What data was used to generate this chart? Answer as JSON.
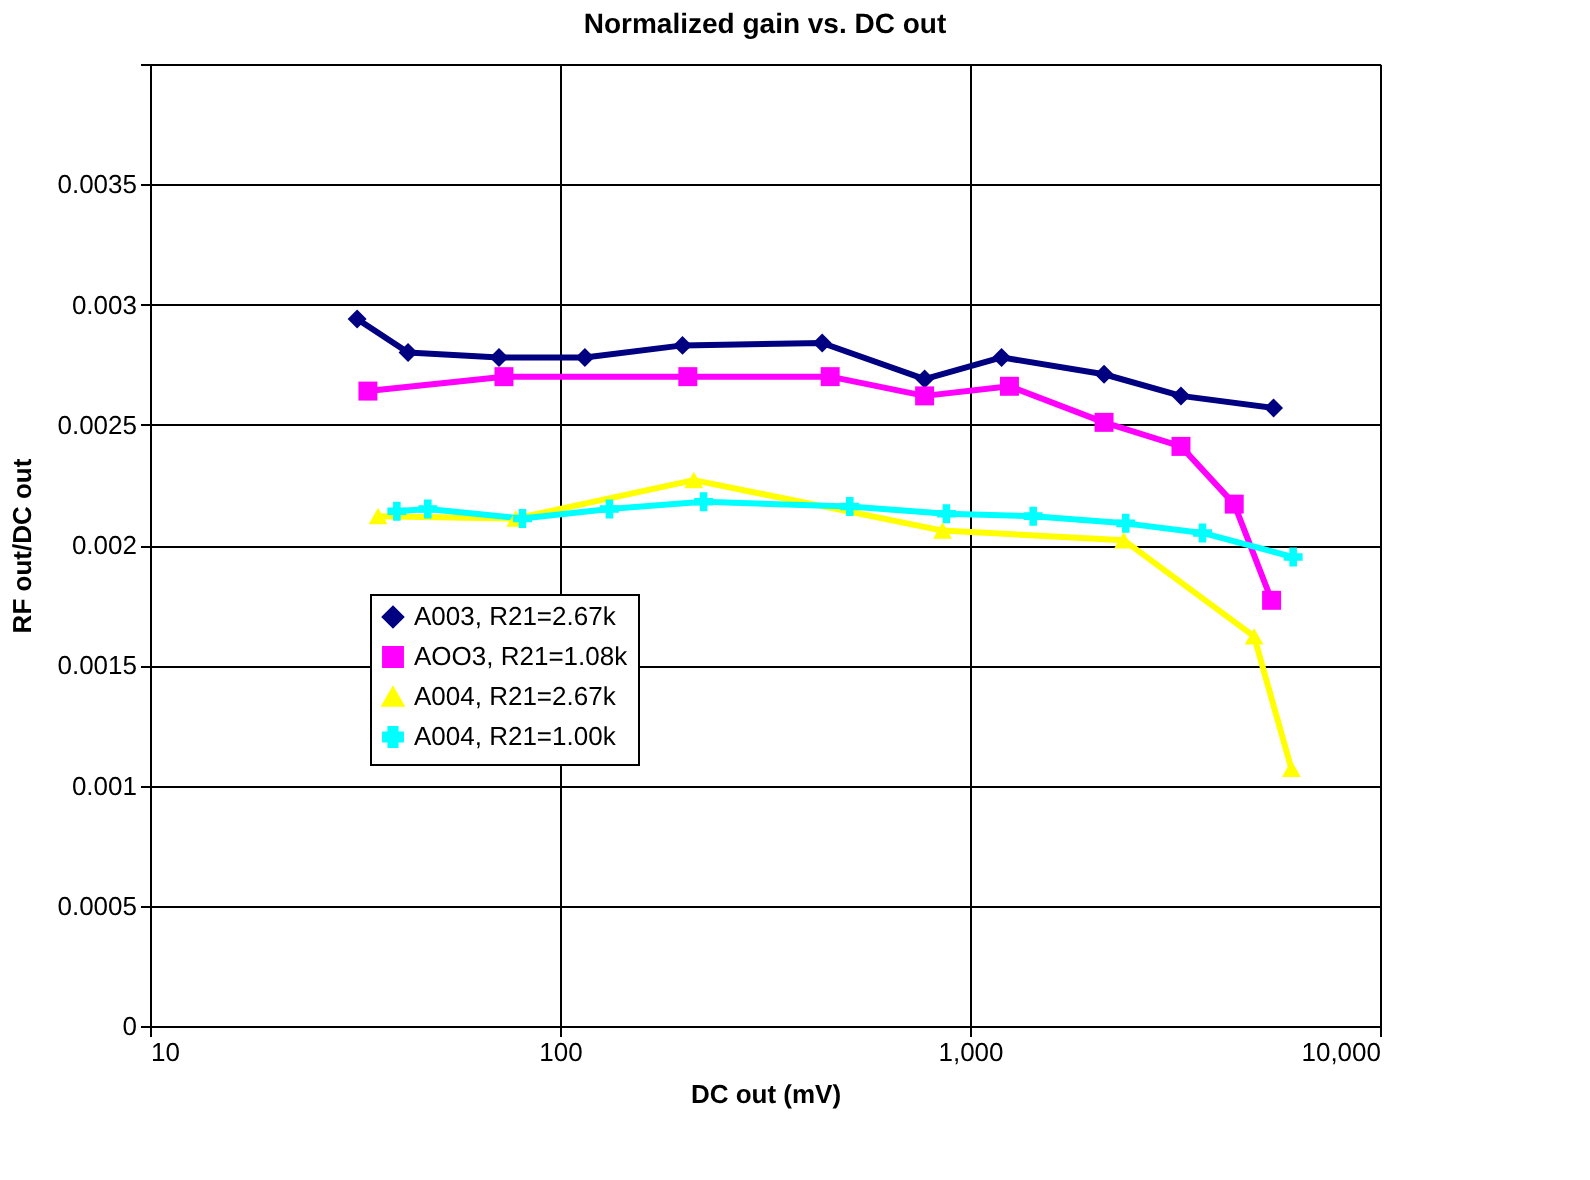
{
  "chart_data": {
    "type": "line",
    "title": "Normalized gain vs. DC out",
    "xlabel": "DC out (mV)",
    "ylabel": "RF out/DC out",
    "log": "x",
    "xlim": [
      10,
      10000
    ],
    "xticks": [
      10,
      100,
      {
        "value": 1000,
        "label": "1,000"
      },
      {
        "value": 10000,
        "label": "10,000"
      }
    ],
    "ylim": [
      0,
      0.004
    ],
    "yticks": [
      0,
      0.0005,
      0.001,
      0.0015,
      0.002,
      0.0025,
      0.003,
      0.0035,
      {
        "value": 0.004,
        "label": null
      }
    ],
    "grid": true,
    "legend": "left",
    "line_style": "solid",
    "series": [
      {
        "name": "A003, R21=2.67k",
        "color": "#000080",
        "marker": "diamond",
        "x": [
          32,
          42.6,
          71,
          115,
          199,
          436,
          775,
          1194,
          2123,
          3270,
          5500
        ],
        "values": [
          0.00294,
          0.0028,
          0.00278,
          0.00278,
          0.00283,
          0.00284,
          0.00269,
          0.00278,
          0.00271,
          0.00262,
          0.00257
        ]
      },
      {
        "name": "AOO3, R21=1.08k",
        "color": "#ff00ff",
        "marker": "square",
        "x": [
          34,
          73,
          205,
          456,
          775,
          1248,
          2123,
          3270,
          4410,
          5440
        ],
        "values": [
          0.00264,
          0.0027,
          0.0027,
          0.0027,
          0.00262,
          0.00266,
          0.00251,
          0.00241,
          0.00217,
          0.00177
        ]
      },
      {
        "name": "A004, R21=2.67k",
        "color": "#ffff00",
        "marker": "triangle",
        "x": [
          36,
          78,
          212,
          857,
          2370,
          4930,
          6080
        ],
        "values": [
          0.00212,
          0.00211,
          0.00227,
          0.00206,
          0.00202,
          0.00162,
          0.00107
        ]
      },
      {
        "name": "A004, R21=1.00k",
        "color": "#00ffff",
        "marker": "cross",
        "x": [
          40,
          47.6,
          81,
          132,
          224,
          509,
          876,
          1426,
          2398,
          3690,
          6140
        ],
        "values": [
          0.00214,
          0.00215,
          0.00211,
          0.00215,
          0.00218,
          0.00216,
          0.00213,
          0.00212,
          0.00209,
          0.00205,
          0.00195
        ]
      }
    ]
  }
}
